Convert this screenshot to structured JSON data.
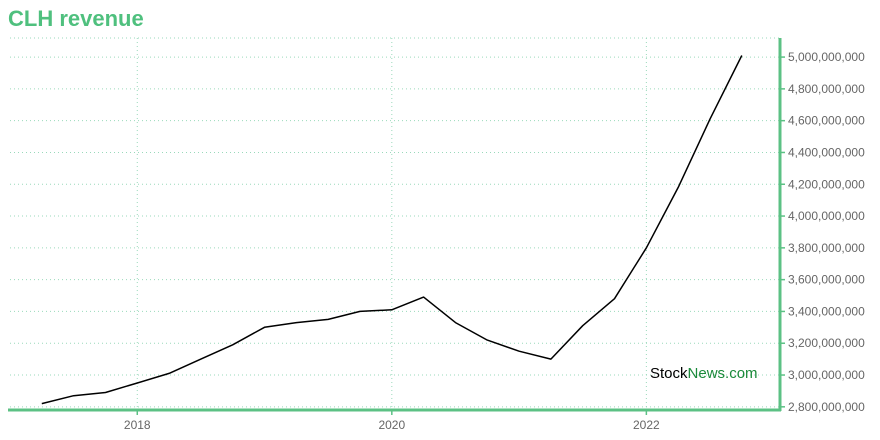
{
  "chart_data": {
    "type": "line",
    "title": "CLH revenue",
    "xlabel": "",
    "ylabel": "",
    "x_tick_labels": [
      "2018",
      "2020",
      "2022"
    ],
    "x_ticks": [
      2018,
      2020,
      2022
    ],
    "xlim": [
      2017.0,
      2023.05
    ],
    "y_tick_labels": [
      "2,800,000,000",
      "3,000,000,000",
      "3,200,000,000",
      "3,400,000,000",
      "3,600,000,000",
      "3,800,000,000",
      "4,000,000,000",
      "4,200,000,000",
      "4,400,000,000",
      "4,600,000,000",
      "4,800,000,000",
      "5,000,000,000"
    ],
    "y_ticks": [
      2800000000,
      3000000000,
      3200000000,
      3400000000,
      3600000000,
      3800000000,
      4000000000,
      4200000000,
      4400000000,
      4600000000,
      4800000000,
      5000000000
    ],
    "ylim": [
      2780000000,
      5120000000
    ],
    "grid": true,
    "axis_color": "#5cc184",
    "grid_color": "#9ad9bb",
    "line_color": "#000000",
    "series": [
      {
        "x": [
          2017.25,
          2017.5,
          2017.75,
          2018.0,
          2018.25,
          2018.5,
          2018.75,
          2019.0,
          2019.25,
          2019.5,
          2019.75,
          2020.0,
          2020.25,
          2020.5,
          2020.75,
          2021.0,
          2021.25,
          2021.5,
          2021.75,
          2022.0,
          2022.25,
          2022.5,
          2022.75
        ],
        "values": [
          2820000000,
          2870000000,
          2890000000,
          2950000000,
          3010000000,
          3100000000,
          3190000000,
          3300000000,
          3330000000,
          3350000000,
          3400000000,
          3410000000,
          3490000000,
          3330000000,
          3220000000,
          3150000000,
          3100000000,
          3310000000,
          3480000000,
          3800000000,
          4180000000,
          4610000000,
          5010000000
        ]
      }
    ]
  },
  "watermark": {
    "part1": "Stock",
    "part2": "News.com"
  }
}
